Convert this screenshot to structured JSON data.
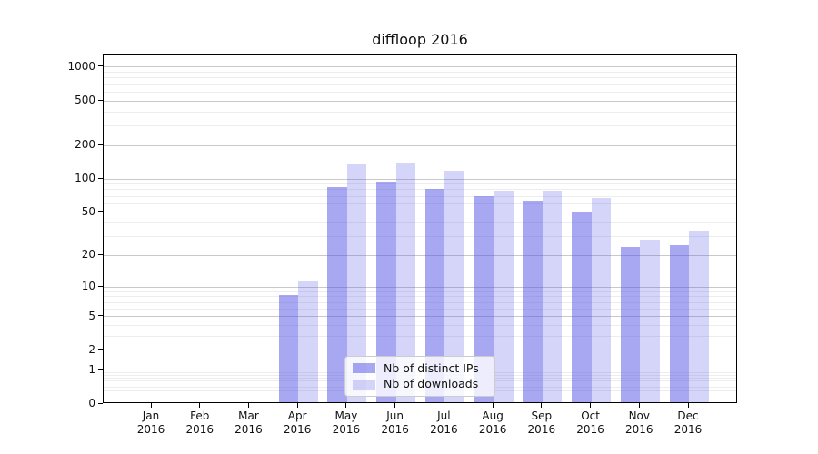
{
  "title": "diffloop 2016",
  "legend": {
    "items": [
      {
        "label": "Nb of distinct IPs",
        "color": "rgba(79,79,229,0.5)"
      },
      {
        "label": "Nb of downloads",
        "color": "rgba(79,79,229,0.24)"
      }
    ]
  },
  "colors": {
    "bar_distinct_ips": "rgba(79,79,229,0.5)",
    "bar_downloads": "rgba(79,79,229,0.24)",
    "grid_major": "#c9c9c9",
    "grid_minor": "#ededed",
    "axis": "#000000",
    "background": "#ffffff"
  },
  "chart_data": {
    "type": "bar",
    "title": "diffloop 2016",
    "xlabel": "",
    "ylabel": "",
    "categories": [
      "Jan",
      "Feb",
      "Mar",
      "Apr",
      "May",
      "Jun",
      "Jul",
      "Aug",
      "Sep",
      "Oct",
      "Nov",
      "Dec"
    ],
    "x_year_label": "2016",
    "series": [
      {
        "name": "Nb of distinct IPs",
        "values": [
          0,
          0,
          0,
          8,
          82,
          91,
          78,
          67,
          61,
          49,
          23,
          24
        ]
      },
      {
        "name": "Nb of downloads",
        "values": [
          0,
          0,
          0,
          11,
          131,
          133,
          114,
          76,
          75,
          65,
          27,
          33
        ]
      }
    ],
    "y_scale": "log1p",
    "y_ticks": [
      1000,
      500,
      200,
      100,
      50,
      20,
      10,
      5,
      2,
      1,
      0
    ],
    "y_minor_gridlines": [
      0.3,
      0.4,
      0.6,
      0.7,
      0.8,
      0.9,
      3,
      4,
      6,
      7,
      8,
      9,
      30,
      40,
      60,
      70,
      80,
      90,
      300,
      400,
      600,
      700,
      800,
      900
    ],
    "ylim": [
      0,
      1272
    ],
    "grid": "both",
    "legend_position": "lower center"
  }
}
